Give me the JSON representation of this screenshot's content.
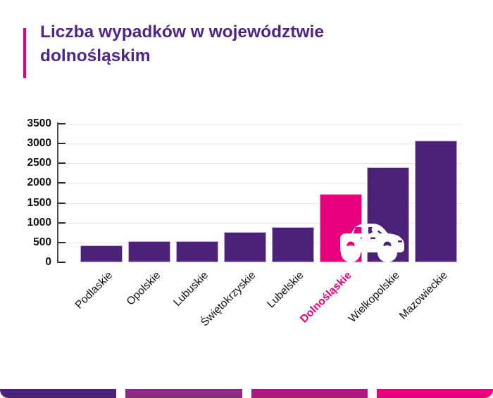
{
  "header": {
    "title": "Liczba wypadków w województwie dolnośląskim",
    "accent_color": "#e6007e",
    "title_color": "#4f2683"
  },
  "chart_data": {
    "type": "bar",
    "title": "Liczba wypadków w województwie dolnośląskim",
    "categories": [
      "Podlaskie",
      "Opolskie",
      "Lubuskie",
      "Świętokrzyskie",
      "Lubelskie",
      "Dolnośląskie",
      "Wielkopolskie",
      "Mazowieckie"
    ],
    "values": [
      430,
      540,
      540,
      770,
      890,
      1720,
      2400,
      3080
    ],
    "highlight_category": "Dolnośląskie",
    "bar_color": "#4c2178",
    "highlight_color": "#e6007e",
    "tick_label_color": "#111111",
    "highlight_label_color": "#e6007e",
    "xlabel": "",
    "ylabel": "",
    "ylim": [
      0,
      3500
    ],
    "yticks": [
      0,
      500,
      1000,
      1500,
      2000,
      2500,
      3000,
      3500
    ],
    "grid": true,
    "legend": false
  },
  "icons": {
    "car": "car-icon"
  },
  "footer": {
    "segment_colors": [
      "#4c2178",
      "#8c2a86",
      "#ab1a82",
      "#e6007e"
    ]
  }
}
